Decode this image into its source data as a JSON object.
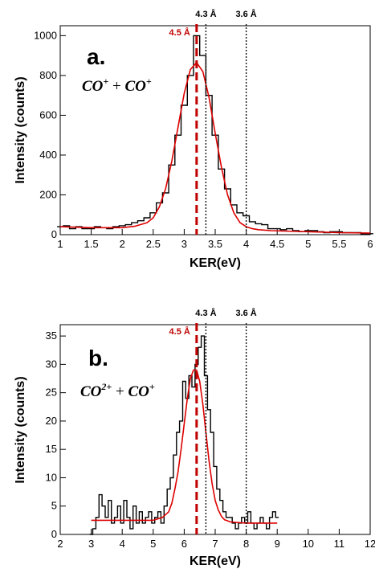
{
  "chart_data": [
    {
      "type": "line",
      "panel_label": "a.",
      "formula": {
        "base1": "CO",
        "sup1": "+",
        "op": " + ",
        "base2": "CO",
        "sup2": "+"
      },
      "xlabel": "KER(eV)",
      "ylabel": "Intensity (counts)",
      "xlim": [
        1,
        6
      ],
      "ylim": [
        0,
        1050
      ],
      "xticks": [
        1,
        1.5,
        2,
        2.5,
        3,
        3.5,
        4,
        4.5,
        5,
        5.5,
        6
      ],
      "yticks": [
        0,
        200,
        400,
        600,
        800,
        1000
      ],
      "ref_lines": [
        {
          "x": 3.2,
          "label": "4.5 Å",
          "style": "dashed",
          "color": "#c00000"
        },
        {
          "x": 3.35,
          "label": "4.3 Å",
          "style": "dotted",
          "color": "#000000"
        },
        {
          "x": 4.0,
          "label": "3.6 Å",
          "style": "dotted",
          "color": "#000000"
        }
      ],
      "series": [
        {
          "kind": "histogram",
          "color": "#000000",
          "x": [
            1.0,
            1.1,
            1.2,
            1.3,
            1.4,
            1.5,
            1.6,
            1.7,
            1.8,
            1.9,
            2.0,
            2.1,
            2.2,
            2.3,
            2.4,
            2.5,
            2.6,
            2.7,
            2.8,
            2.9,
            3.0,
            3.1,
            3.2,
            3.3,
            3.4,
            3.5,
            3.6,
            3.7,
            3.8,
            3.9,
            4.0,
            4.1,
            4.2,
            4.3,
            4.4,
            4.5,
            4.6,
            4.7,
            4.8,
            4.9,
            5.0,
            5.1,
            5.2,
            5.3,
            5.4,
            5.5,
            5.6,
            5.7,
            5.8,
            5.9,
            6.0
          ],
          "y": [
            40,
            45,
            30,
            40,
            30,
            30,
            40,
            35,
            30,
            40,
            45,
            50,
            60,
            70,
            85,
            110,
            160,
            210,
            350,
            500,
            650,
            800,
            1000,
            900,
            700,
            500,
            330,
            230,
            150,
            110,
            95,
            65,
            55,
            50,
            30,
            30,
            25,
            30,
            20,
            15,
            20,
            20,
            15,
            10,
            15,
            15,
            10,
            10,
            10,
            5,
            5
          ]
        },
        {
          "kind": "fit",
          "color": "#dd0000",
          "x": [
            1.0,
            1.5,
            2.0,
            2.2,
            2.4,
            2.5,
            2.6,
            2.7,
            2.8,
            2.9,
            3.0,
            3.1,
            3.2,
            3.3,
            3.4,
            3.5,
            3.6,
            3.7,
            3.8,
            3.9,
            4.0,
            4.1,
            4.2,
            4.4,
            4.6,
            5.0,
            5.5,
            6.0
          ],
          "y": [
            40,
            35,
            35,
            42,
            60,
            85,
            140,
            230,
            370,
            540,
            710,
            830,
            865,
            820,
            690,
            510,
            340,
            200,
            110,
            60,
            40,
            30,
            25,
            20,
            18,
            15,
            10,
            8
          ]
        }
      ]
    },
    {
      "type": "line",
      "panel_label": "b.",
      "formula": {
        "base1": "CO",
        "sup1": "2+",
        "op": " + ",
        "base2": "CO",
        "sup2": "+"
      },
      "xlabel": "KER(eV)",
      "ylabel": "Intensity (counts)",
      "xlim": [
        2,
        12
      ],
      "ylim": [
        0,
        37
      ],
      "xticks": [
        2,
        3,
        4,
        5,
        6,
        7,
        8,
        9,
        10,
        11,
        12
      ],
      "yticks": [
        0,
        5,
        10,
        15,
        20,
        25,
        30,
        35
      ],
      "ref_lines": [
        {
          "x": 6.4,
          "label": "4.5 Å",
          "style": "dashed",
          "color": "#c00000"
        },
        {
          "x": 6.7,
          "label": "4.3 Å",
          "style": "dotted",
          "color": "#000000"
        },
        {
          "x": 8.0,
          "label": "3.6 Å",
          "style": "dotted",
          "color": "#000000"
        }
      ],
      "series": [
        {
          "kind": "histogram",
          "color": "#000000",
          "x": [
            3.0,
            3.1,
            3.2,
            3.3,
            3.4,
            3.5,
            3.6,
            3.7,
            3.8,
            3.9,
            4.0,
            4.1,
            4.2,
            4.3,
            4.4,
            4.5,
            4.6,
            4.7,
            4.8,
            4.9,
            5.0,
            5.1,
            5.2,
            5.3,
            5.4,
            5.5,
            5.6,
            5.7,
            5.8,
            5.9,
            6.0,
            6.1,
            6.2,
            6.3,
            6.4,
            6.5,
            6.6,
            6.7,
            6.8,
            6.9,
            7.0,
            7.1,
            7.2,
            7.3,
            7.4,
            7.5,
            7.6,
            7.7,
            7.8,
            7.9,
            8.0,
            8.1,
            8.2,
            8.3,
            8.4,
            8.5,
            8.6,
            8.7,
            8.8,
            8.9,
            9.0
          ],
          "y": [
            0,
            1,
            3,
            7,
            5,
            3,
            6,
            2,
            3,
            5,
            2,
            6,
            3,
            1,
            5,
            2,
            4,
            2,
            3,
            4,
            2,
            3,
            4,
            2,
            5,
            8,
            10,
            14,
            18,
            20,
            27,
            24,
            28,
            26,
            30,
            33,
            35,
            28,
            22,
            18,
            12,
            8,
            6,
            4,
            3,
            3,
            2,
            1,
            2,
            3,
            2,
            4,
            2,
            1,
            2,
            3,
            2,
            1,
            3,
            4,
            3
          ]
        },
        {
          "kind": "fit",
          "color": "#dd0000",
          "x": [
            3.0,
            4.0,
            5.0,
            5.3,
            5.5,
            5.6,
            5.7,
            5.8,
            5.9,
            6.0,
            6.1,
            6.2,
            6.3,
            6.4,
            6.5,
            6.6,
            6.7,
            6.8,
            6.9,
            7.0,
            7.1,
            7.2,
            7.3,
            7.5,
            8.0,
            8.5,
            9.0
          ],
          "y": [
            2.5,
            2.5,
            2.5,
            3,
            4,
            5.5,
            8,
            11,
            15,
            19.5,
            24,
            27.5,
            29,
            29,
            27,
            23,
            18,
            13,
            9,
            6,
            4.3,
            3.2,
            2.6,
            2.2,
            2,
            2,
            2
          ]
        }
      ]
    }
  ]
}
